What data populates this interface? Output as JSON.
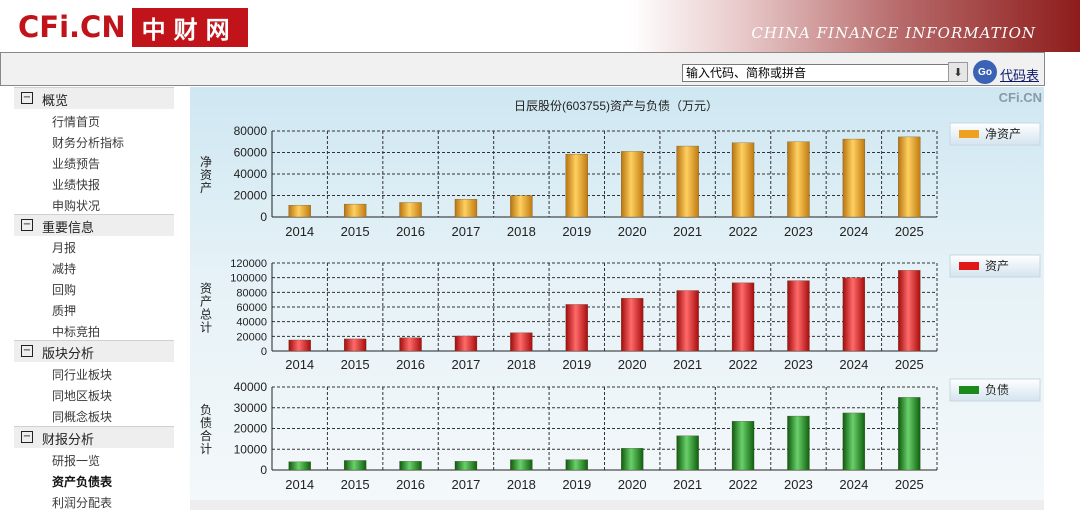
{
  "header": {
    "logo_en": "CFi.CN",
    "logo_cn": "中财网",
    "banner": "CHINA FINANCE INFORMATION"
  },
  "toolbar": {
    "search_placeholder": "输入代码、简称或拼音",
    "go_label": "Go",
    "code_link": "代码表"
  },
  "sidebar": {
    "sections": [
      {
        "title": "概览",
        "items": [
          "行情首页",
          "财务分析指标",
          "业绩预告",
          "业绩快报",
          "申购状况"
        ]
      },
      {
        "title": "重要信息",
        "items": [
          "月报",
          "减持",
          "回购",
          "质押",
          "中标竞拍"
        ]
      },
      {
        "title": "版块分析",
        "items": [
          "同行业板块",
          "同地区板块",
          "同概念板块"
        ]
      },
      {
        "title": "财报分析",
        "items": [
          "研报一览",
          "资产负债表",
          "利润分配表"
        ]
      }
    ],
    "active_item": "资产负债表"
  },
  "chart_data": {
    "title": "日辰股份(603755)资产与负债（万元）",
    "watermark": "CFi.CN",
    "type": "bar",
    "categories": [
      "2014",
      "2015",
      "2016",
      "2017",
      "2018",
      "2019",
      "2020",
      "2021",
      "2022",
      "2023",
      "2024",
      "2025"
    ],
    "charts": [
      {
        "ylabel": "净资产",
        "legend": "净资产",
        "color": "#f0a020",
        "ylim": [
          0,
          80000
        ],
        "yticks": [
          0,
          20000,
          40000,
          60000,
          80000
        ],
        "values": [
          11000,
          12000,
          13500,
          16500,
          20000,
          58500,
          61000,
          66000,
          69000,
          70000,
          72500,
          74500
        ]
      },
      {
        "ylabel": "资产总计",
        "legend": "资产",
        "color": "#e01818",
        "ylim": [
          0,
          120000
        ],
        "yticks": [
          0,
          20000,
          40000,
          60000,
          80000,
          100000,
          120000
        ],
        "values": [
          15000,
          16500,
          18000,
          20500,
          25000,
          63500,
          72000,
          82500,
          93000,
          96000,
          100000,
          110000
        ]
      },
      {
        "ylabel": "负债合计",
        "legend": "负债",
        "color": "#1a8a1a",
        "ylim": [
          0,
          40000
        ],
        "yticks": [
          0,
          10000,
          20000,
          30000,
          40000
        ],
        "values": [
          4000,
          4600,
          4200,
          4200,
          5000,
          5000,
          10500,
          16500,
          23500,
          26000,
          27500,
          35000
        ]
      }
    ]
  }
}
